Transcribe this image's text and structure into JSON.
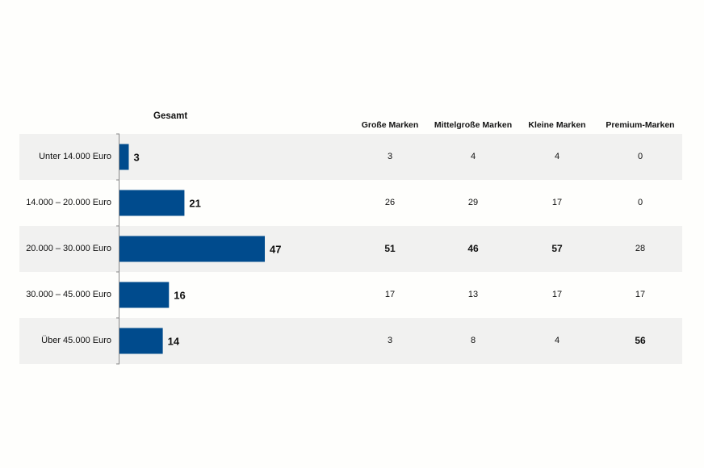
{
  "chart_data": {
    "type": "bar",
    "orientation": "horizontal",
    "title": "Gesamt",
    "categories": [
      "Unter 14.000 Euro",
      "14.000 – 20.000 Euro",
      "20.000 – 30.000 Euro",
      "30.000 – 45.000 Euro",
      "Über 45.000 Euro"
    ],
    "values": [
      3,
      21,
      47,
      16,
      14
    ],
    "value_labels": [
      "3",
      "21",
      "47",
      "16",
      "14"
    ],
    "bar_color": "#004b8d",
    "grid": false,
    "table": {
      "columns": [
        "Große Marken",
        "Mittelgroße Marken",
        "Kleine Marken",
        "Premium-Marken"
      ],
      "rows": [
        [
          "3",
          "4",
          "4",
          "0"
        ],
        [
          "26",
          "29",
          "17",
          "0"
        ],
        [
          "51",
          "46",
          "57",
          "28"
        ],
        [
          "17",
          "13",
          "17",
          "17"
        ],
        [
          "3",
          "8",
          "4",
          "56"
        ]
      ],
      "emphasized": [
        [
          false,
          false,
          false,
          false
        ],
        [
          false,
          false,
          false,
          false
        ],
        [
          true,
          true,
          true,
          false
        ],
        [
          false,
          false,
          false,
          false
        ],
        [
          false,
          false,
          false,
          true
        ]
      ]
    }
  },
  "colors": {
    "band_shaded": "#f1f1f0",
    "axis": "#888888"
  }
}
